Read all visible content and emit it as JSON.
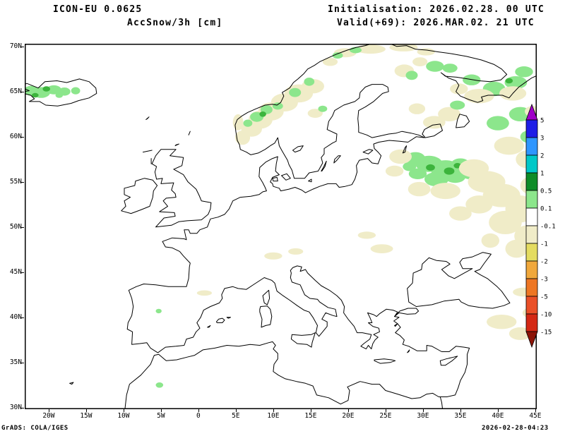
{
  "header": {
    "model": "ICON-EU 0.0625",
    "product": "AccSnow/3h [cm]",
    "init": "Initialisation: 2026.02.28. 00 UTC",
    "valid": "Valid(+69): 2026.MAR.02. 21 UTC"
  },
  "footer": {
    "left": "GrADS: COLA/IGES",
    "right": "2026-02-28-04:23"
  },
  "axes": {
    "lat": {
      "labels": [
        "70N",
        "65N",
        "60N",
        "55N",
        "50N",
        "45N",
        "40N",
        "35N",
        "30N"
      ],
      "values": [
        70,
        65,
        60,
        55,
        50,
        45,
        40,
        35,
        30
      ]
    },
    "lon": {
      "labels": [
        "20W",
        "15W",
        "10W",
        "5W",
        "0",
        "5E",
        "10E",
        "15E",
        "20E",
        "25E",
        "30E",
        "35E",
        "40E",
        "45E"
      ],
      "values": [
        -20,
        -15,
        -10,
        -5,
        0,
        5,
        10,
        15,
        20,
        25,
        30,
        35,
        40,
        45
      ]
    }
  },
  "colorbar": {
    "labels": [
      "5",
      "3",
      "2",
      "1",
      "0.5",
      "0.1",
      "-0.1",
      "-1",
      "-2",
      "-3",
      "-5",
      "-10",
      "-15"
    ],
    "top_triangle": "#a000c8",
    "cells": [
      "#1e1ee6",
      "#2e96ff",
      "#00c8c8",
      "#0e8c28",
      "#8ce68c",
      "#ffffff",
      "#f0ecc8",
      "#e4dc60",
      "#f0a83c",
      "#ee7623",
      "#ea5028",
      "#d42814"
    ],
    "bottom_triangle": "#8c1408"
  },
  "map": {
    "level_colors": {
      "c": "#f0ecc8",
      "g": "#8ce68c",
      "G": "#3cb43c"
    },
    "snow_patches": [
      [
        -22.3,
        65.1,
        1.0,
        0.55,
        "g"
      ],
      [
        -21.0,
        64.9,
        1.2,
        0.6,
        "g"
      ],
      [
        -19.3,
        65.2,
        1.0,
        0.5,
        "g"
      ],
      [
        -17.9,
        65.0,
        0.8,
        0.45,
        "g"
      ],
      [
        -16.4,
        65.1,
        0.6,
        0.4,
        "g"
      ],
      [
        -20.3,
        65.3,
        0.5,
        0.3,
        "G"
      ],
      [
        -21.8,
        64.6,
        0.45,
        0.25,
        "G"
      ],
      [
        -18.6,
        64.6,
        0.5,
        0.3,
        "g"
      ],
      [
        5.9,
        59.9,
        1.0,
        0.8,
        "c"
      ],
      [
        7.1,
        60.9,
        1.4,
        0.9,
        "c"
      ],
      [
        8.3,
        61.9,
        1.6,
        1.0,
        "c"
      ],
      [
        9.7,
        62.8,
        1.7,
        1.0,
        "c"
      ],
      [
        11.5,
        63.8,
        1.8,
        1.0,
        "c"
      ],
      [
        13.4,
        64.8,
        1.9,
        1.0,
        "c"
      ],
      [
        15.3,
        65.6,
        1.5,
        0.8,
        "c"
      ],
      [
        5.3,
        61.6,
        0.7,
        0.9,
        "c"
      ],
      [
        7.8,
        62.2,
        0.9,
        0.55,
        "g"
      ],
      [
        9.1,
        63.0,
        0.8,
        0.5,
        "g"
      ],
      [
        10.6,
        63.4,
        0.7,
        0.4,
        "g"
      ],
      [
        6.6,
        61.5,
        0.6,
        0.4,
        "g"
      ],
      [
        12.9,
        64.9,
        0.8,
        0.5,
        "g"
      ],
      [
        14.8,
        66.1,
        0.7,
        0.45,
        "g"
      ],
      [
        8.6,
        62.5,
        0.45,
        0.3,
        "G"
      ],
      [
        15.6,
        62.6,
        1.0,
        0.5,
        "c"
      ],
      [
        16.6,
        63.1,
        0.6,
        0.35,
        "g"
      ],
      [
        17.6,
        68.3,
        1.0,
        0.45,
        "c"
      ],
      [
        19.6,
        69.3,
        1.5,
        0.5,
        "c"
      ],
      [
        23.0,
        69.7,
        2.0,
        0.5,
        "c"
      ],
      [
        27.4,
        69.9,
        1.9,
        0.45,
        "c"
      ],
      [
        30.4,
        69.4,
        1.2,
        0.4,
        "c"
      ],
      [
        21.0,
        69.6,
        0.8,
        0.35,
        "g"
      ],
      [
        18.6,
        69.0,
        0.7,
        0.35,
        "g"
      ],
      [
        27.5,
        67.3,
        1.3,
        0.7,
        "c"
      ],
      [
        28.5,
        66.8,
        0.8,
        0.5,
        "g"
      ],
      [
        29.6,
        68.3,
        1.0,
        0.5,
        "c"
      ],
      [
        31.6,
        67.8,
        1.2,
        0.6,
        "g"
      ],
      [
        33.6,
        67.6,
        1.0,
        0.5,
        "g"
      ],
      [
        36.5,
        66.3,
        1.2,
        0.6,
        "g"
      ],
      [
        39.5,
        65.3,
        1.5,
        0.8,
        "g"
      ],
      [
        42.4,
        66.0,
        1.5,
        0.7,
        "g"
      ],
      [
        43.5,
        67.2,
        1.2,
        0.6,
        "g"
      ],
      [
        41.5,
        66.2,
        0.5,
        0.3,
        "G"
      ],
      [
        37.5,
        64.5,
        2.0,
        0.8,
        "c"
      ],
      [
        42.0,
        64.8,
        1.8,
        0.8,
        "c"
      ],
      [
        34.8,
        65.3,
        1.2,
        0.6,
        "c"
      ],
      [
        31.5,
        61.6,
        1.5,
        0.7,
        "c"
      ],
      [
        33.5,
        62.5,
        1.5,
        0.8,
        "c"
      ],
      [
        34.6,
        63.5,
        1.0,
        0.5,
        "g"
      ],
      [
        29.2,
        63.1,
        1.1,
        0.6,
        "c"
      ],
      [
        40.0,
        61.5,
        1.5,
        0.8,
        "g"
      ],
      [
        43.0,
        62.5,
        1.5,
        0.8,
        "g"
      ],
      [
        44.2,
        60.0,
        1.2,
        0.7,
        "g"
      ],
      [
        41.5,
        59.0,
        2.0,
        1.0,
        "c"
      ],
      [
        44.0,
        57.5,
        1.6,
        1.0,
        "c"
      ],
      [
        44.6,
        62.8,
        1.0,
        0.6,
        "c"
      ],
      [
        29.0,
        57.6,
        1.3,
        0.7,
        "g"
      ],
      [
        30.8,
        57.0,
        1.8,
        0.9,
        "g"
      ],
      [
        33.0,
        56.4,
        2.0,
        1.0,
        "g"
      ],
      [
        35.0,
        56.9,
        1.3,
        0.7,
        "g"
      ],
      [
        34.3,
        55.6,
        1.4,
        0.7,
        "g"
      ],
      [
        31.8,
        55.3,
        1.6,
        0.8,
        "g"
      ],
      [
        29.3,
        55.9,
        1.2,
        0.6,
        "g"
      ],
      [
        28.2,
        56.7,
        0.9,
        0.5,
        "g"
      ],
      [
        36.2,
        55.8,
        0.9,
        0.5,
        "g"
      ],
      [
        31.0,
        56.6,
        0.6,
        0.35,
        "G"
      ],
      [
        33.5,
        56.2,
        0.7,
        0.4,
        "G"
      ],
      [
        34.6,
        56.8,
        0.5,
        0.3,
        "G"
      ],
      [
        27.0,
        57.8,
        1.5,
        0.8,
        "c"
      ],
      [
        36.8,
        56.5,
        2.0,
        1.0,
        "c"
      ],
      [
        38.5,
        55.0,
        2.5,
        1.2,
        "c"
      ],
      [
        33.0,
        54.0,
        2.0,
        0.9,
        "c"
      ],
      [
        29.5,
        54.2,
        1.5,
        0.8,
        "c"
      ],
      [
        26.2,
        56.2,
        1.2,
        0.6,
        "c"
      ],
      [
        40.5,
        53.5,
        2.5,
        1.3,
        "c"
      ],
      [
        43.0,
        52.0,
        2.0,
        1.5,
        "c"
      ],
      [
        41.0,
        50.5,
        2.2,
        1.3,
        "c"
      ],
      [
        44.0,
        49.0,
        1.8,
        1.2,
        "c"
      ],
      [
        37.5,
        52.5,
        1.8,
        1.0,
        "c"
      ],
      [
        35.0,
        51.5,
        1.5,
        0.8,
        "c"
      ],
      [
        44.5,
        54.6,
        1.5,
        1.0,
        "c"
      ],
      [
        42.5,
        47.6,
        1.5,
        1.0,
        "c"
      ],
      [
        39.0,
        48.5,
        1.2,
        0.8,
        "c"
      ],
      [
        10.0,
        46.8,
        1.2,
        0.4,
        "c"
      ],
      [
        13.0,
        47.3,
        1.0,
        0.35,
        "c"
      ],
      [
        24.5,
        47.6,
        1.5,
        0.5,
        "c"
      ],
      [
        22.5,
        49.1,
        1.2,
        0.4,
        "c"
      ],
      [
        0.8,
        42.7,
        1.0,
        0.3,
        "c"
      ],
      [
        40.5,
        39.5,
        2.0,
        0.8,
        "c"
      ],
      [
        43.0,
        38.2,
        1.5,
        0.7,
        "c"
      ],
      [
        44.5,
        40.5,
        1.2,
        0.6,
        "c"
      ],
      [
        43.5,
        42.8,
        1.5,
        0.5,
        "c"
      ],
      [
        -5.3,
        40.7,
        0.4,
        0.25,
        "g"
      ],
      [
        -5.2,
        32.5,
        0.5,
        0.3,
        "g"
      ]
    ]
  }
}
